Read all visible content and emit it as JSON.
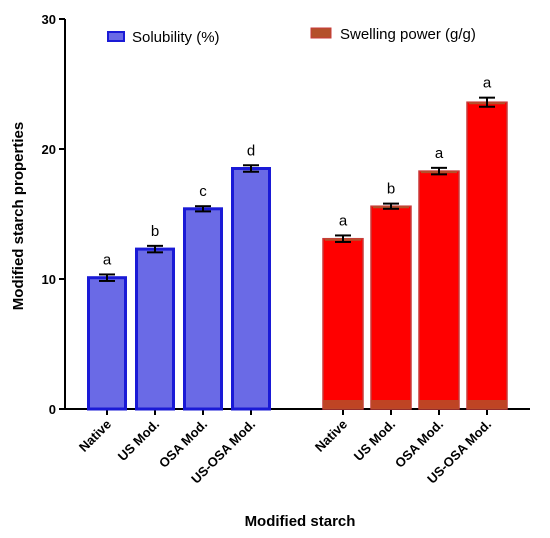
{
  "chart_data": {
    "type": "bar",
    "xlabel": "Modified starch",
    "ylabel": "Modified starch properties",
    "ylim": [
      0,
      30
    ],
    "yticks": [
      "0",
      "10",
      "20",
      "30"
    ],
    "grid": false,
    "legend_placement": "top",
    "groups": [
      {
        "name": "Solubility (%)",
        "fill": "#6a6ae6",
        "stroke": "#1a1ad6",
        "categories": [
          "Native",
          "US Mod.",
          "OSA Mod.",
          "US-OSA Mod."
        ],
        "values": [
          10.1,
          12.3,
          15.4,
          18.5
        ],
        "errors": [
          0.25,
          0.25,
          0.2,
          0.25
        ],
        "letters": [
          "a",
          "b",
          "c",
          "d"
        ]
      },
      {
        "name": "Swelling power (g/g)",
        "fill": "#ff0000",
        "stroke": "#c83a3a",
        "categories": [
          "Native",
          "US Mod.",
          "OSA Mod.",
          "US-OSA Mod."
        ],
        "values": [
          13.1,
          15.6,
          18.3,
          23.6
        ],
        "errors": [
          0.25,
          0.2,
          0.25,
          0.35
        ],
        "letters": [
          "a",
          "b",
          "a",
          "a"
        ]
      }
    ]
  }
}
